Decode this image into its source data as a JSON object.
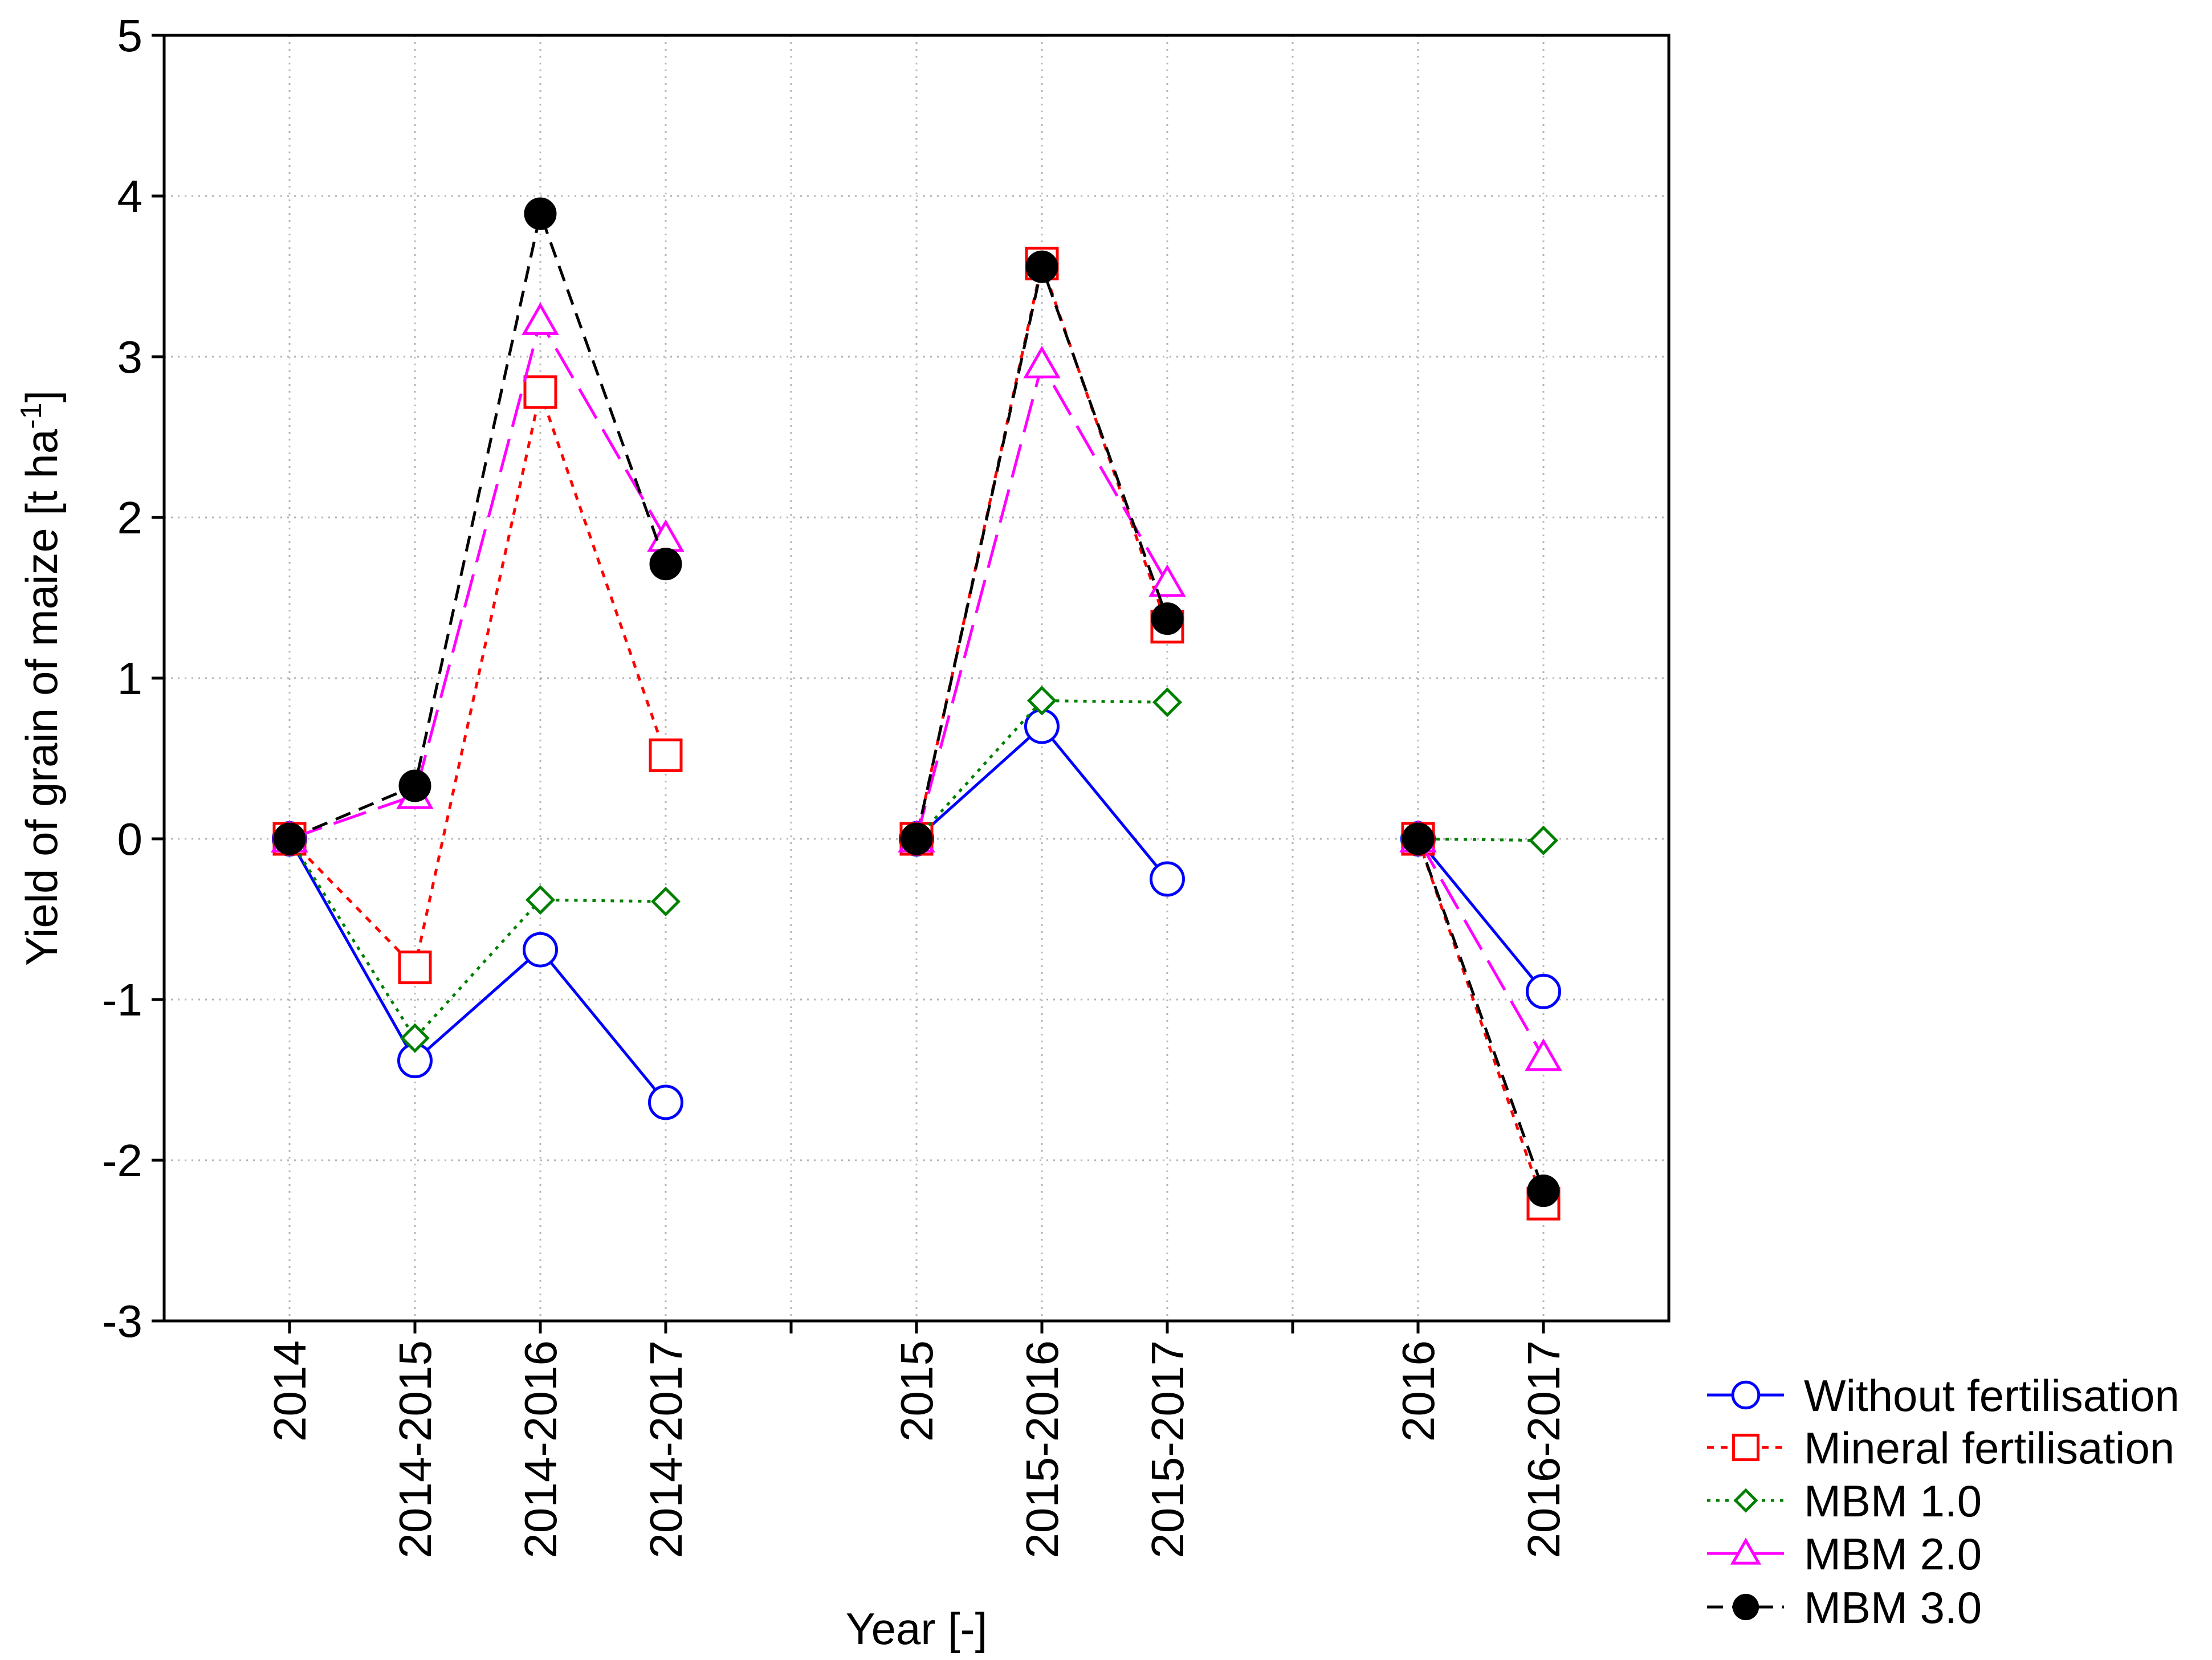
{
  "chart_data": {
    "type": "line",
    "title": "",
    "xlabel": "Year [-]",
    "ylabel": {
      "main": "Yield of grain of maize [t ha",
      "sup": "-1",
      "close": "]"
    },
    "ylim": [
      -3,
      5
    ],
    "yticks": [
      -3,
      -2,
      -1,
      0,
      1,
      2,
      3,
      4,
      5
    ],
    "ytick_labels": [
      "-3",
      "-2",
      "-1",
      "0",
      "1",
      "2",
      "3",
      "4",
      "5"
    ],
    "x_slots": 11,
    "categories": [
      {
        "label": "2014",
        "slot": 1
      },
      {
        "label": "2014-2015",
        "slot": 2
      },
      {
        "label": "2014-2016",
        "slot": 3
      },
      {
        "label": "2014-2017",
        "slot": 4
      },
      {
        "label": "2015",
        "slot": 6
      },
      {
        "label": "2015-2016",
        "slot": 7
      },
      {
        "label": "2015-2017",
        "slot": 8
      },
      {
        "label": "2016",
        "slot": 10
      },
      {
        "label": "2016-2017",
        "slot": 11
      }
    ],
    "grid": true,
    "legend_position": "bottom-right outside",
    "series": [
      {
        "name": "Without fertilisation",
        "color": "#0000ff",
        "dash": "solid",
        "marker": "circle-open",
        "segments": [
          {
            "slots": [
              1,
              2,
              3,
              4
            ],
            "values": [
              0,
              -1.38,
              -0.69,
              -1.64
            ]
          },
          {
            "slots": [
              6,
              7,
              8
            ],
            "values": [
              0,
              0.7,
              -0.25
            ]
          },
          {
            "slots": [
              10,
              11
            ],
            "values": [
              0,
              -0.95
            ]
          }
        ]
      },
      {
        "name": "Mineral fertilisation",
        "color": "#ff0000",
        "dash": "dotted",
        "marker": "square-open",
        "segments": [
          {
            "slots": [
              1,
              2,
              3,
              4
            ],
            "values": [
              0,
              -0.8,
              2.78,
              0.52
            ]
          },
          {
            "slots": [
              6,
              7,
              8
            ],
            "values": [
              0,
              3.58,
              1.32
            ]
          },
          {
            "slots": [
              10,
              11
            ],
            "values": [
              0,
              -2.27
            ]
          }
        ]
      },
      {
        "name": "MBM 1.0",
        "color": "#008000",
        "dash": "dotted-fine",
        "marker": "diamond-open",
        "segments": [
          {
            "slots": [
              1,
              2,
              3,
              4
            ],
            "values": [
              0,
              -1.24,
              -0.38,
              -0.39
            ]
          },
          {
            "slots": [
              6,
              7,
              8
            ],
            "values": [
              0,
              0.86,
              0.85
            ]
          },
          {
            "slots": [
              10,
              11
            ],
            "values": [
              0,
              -0.01
            ]
          }
        ]
      },
      {
        "name": "MBM 2.0",
        "color": "#ff00ff",
        "dash": "long-dash",
        "marker": "triangle-open",
        "segments": [
          {
            "slots": [
              1,
              2,
              3,
              4
            ],
            "values": [
              0,
              0.27,
              3.22,
              1.87
            ]
          },
          {
            "slots": [
              6,
              7,
              8
            ],
            "values": [
              0,
              2.95,
              1.59
            ]
          },
          {
            "slots": [
              10,
              11
            ],
            "values": [
              0,
              -1.36
            ]
          }
        ]
      },
      {
        "name": "MBM 3.0",
        "color": "#000000",
        "dash": "dash",
        "marker": "circle-filled",
        "segments": [
          {
            "slots": [
              1,
              2,
              3,
              4
            ],
            "values": [
              0,
              0.33,
              3.89,
              1.71
            ]
          },
          {
            "slots": [
              6,
              7,
              8
            ],
            "values": [
              0,
              3.56,
              1.37
            ]
          },
          {
            "slots": [
              10,
              11
            ],
            "values": [
              0,
              -2.19
            ]
          }
        ]
      }
    ]
  }
}
